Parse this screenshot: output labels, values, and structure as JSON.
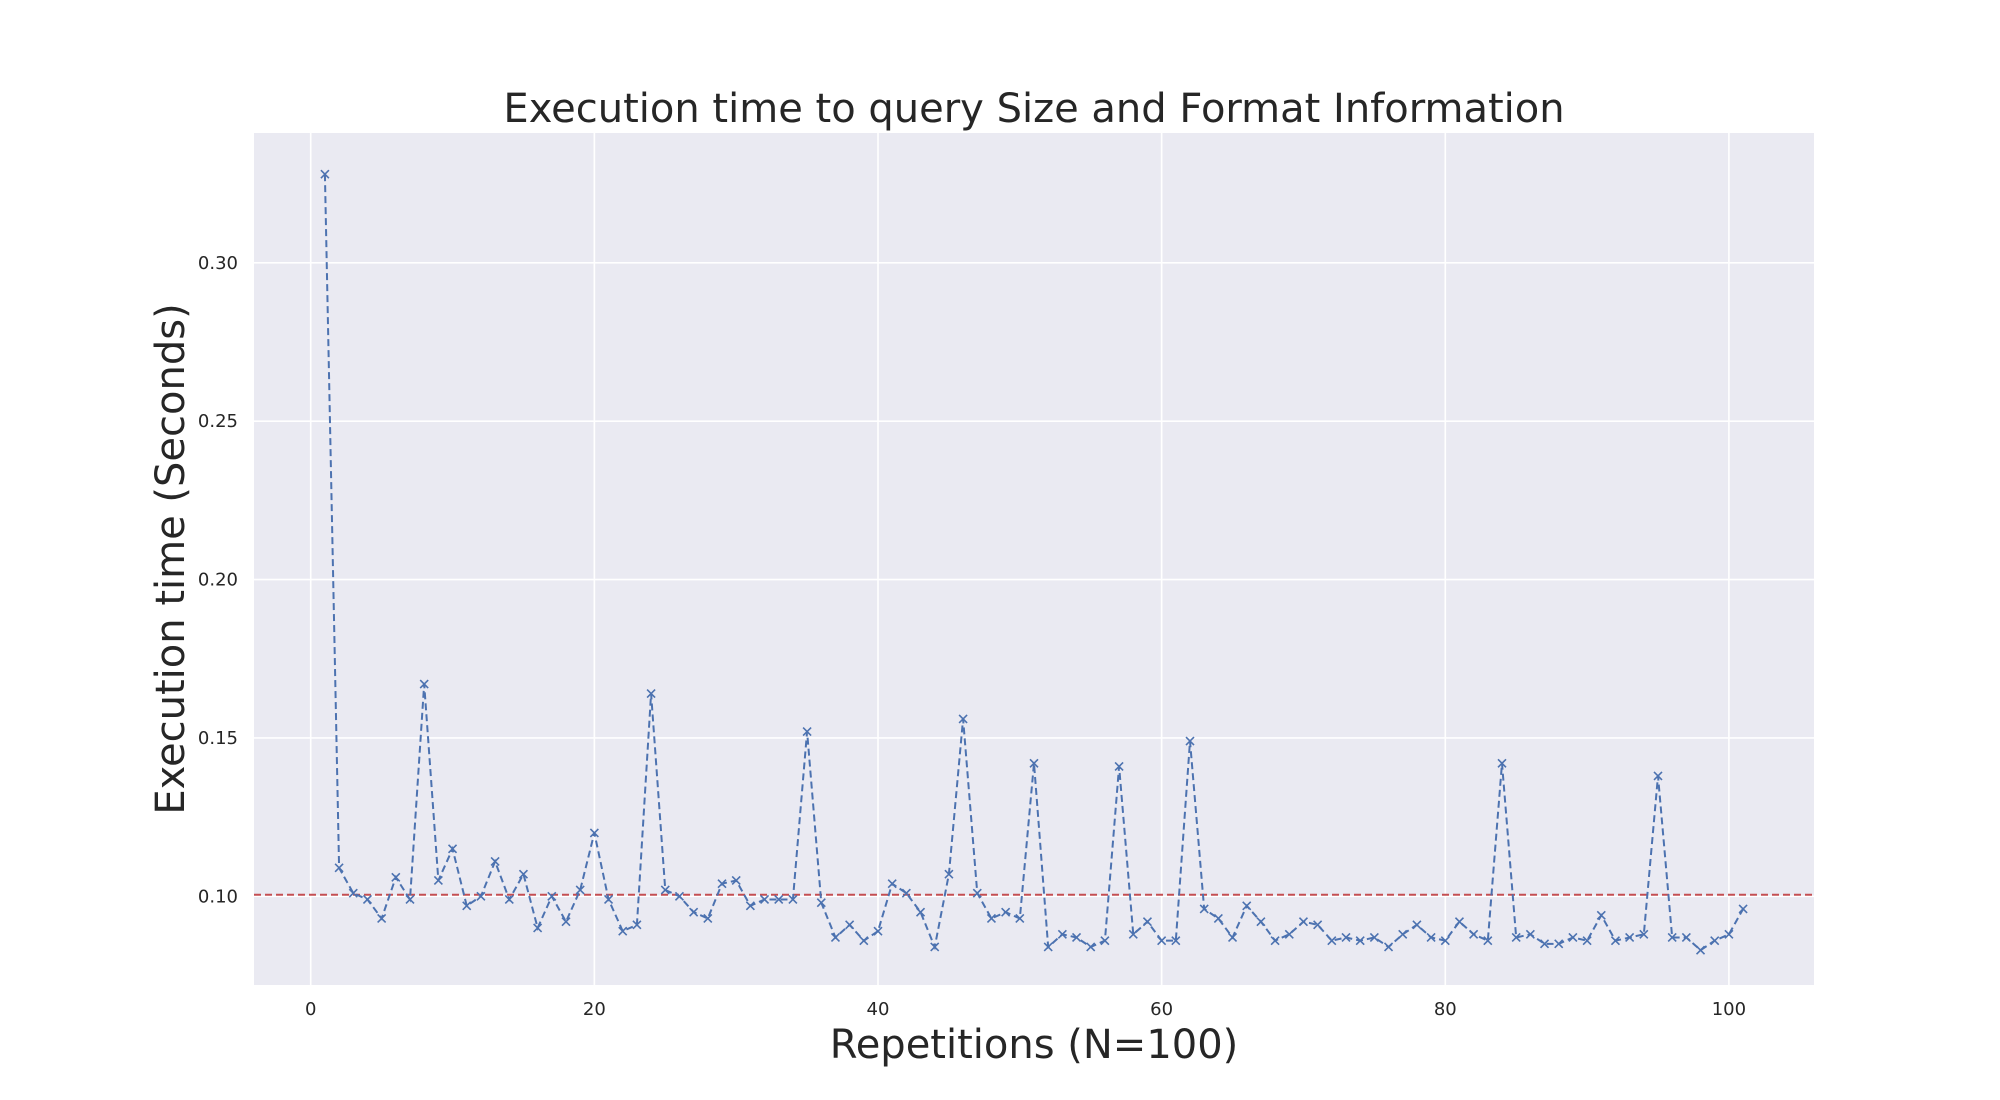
{
  "chart_data": {
    "type": "line",
    "title": "Execution time to query Size and Format Information",
    "xlabel": "Repetitions (N=100)",
    "ylabel": "Execution time (Seconds)",
    "xlim": [
      -4,
      106
    ],
    "ylim": [
      0.072,
      0.341
    ],
    "x_ticks": [
      0,
      20,
      40,
      60,
      80,
      100
    ],
    "x_tick_labels": [
      "0",
      "20",
      "40",
      "60",
      "80",
      "100"
    ],
    "y_ticks": [
      0.1,
      0.15,
      0.2,
      0.25,
      0.3
    ],
    "y_tick_labels": [
      "0.10",
      "0.15",
      "0.20",
      "0.25",
      "0.30"
    ],
    "grid": true,
    "reference_line": {
      "y": 0.1005,
      "color": "#c44e52",
      "style": "dashed"
    },
    "series": [
      {
        "color": "#4c72b0",
        "line_style": "dashed",
        "marker": "x",
        "x": [
          1,
          2,
          3,
          4,
          5,
          6,
          7,
          8,
          9,
          10,
          11,
          12,
          13,
          14,
          15,
          16,
          17,
          18,
          19,
          20,
          21,
          22,
          23,
          24,
          25,
          26,
          27,
          28,
          29,
          30,
          31,
          32,
          33,
          34,
          35,
          36,
          37,
          38,
          39,
          40,
          41,
          42,
          43,
          44,
          45,
          46,
          47,
          48,
          49,
          50,
          51,
          52,
          53,
          54,
          55,
          56,
          57,
          58,
          59,
          60,
          61,
          62,
          63,
          64,
          65,
          66,
          67,
          68,
          69,
          70,
          71,
          72,
          73,
          74,
          75,
          76,
          77,
          78,
          79,
          80,
          81,
          82,
          83,
          84,
          85,
          86,
          87,
          88,
          89,
          90,
          91,
          92,
          93,
          94,
          95,
          96,
          97,
          98,
          99,
          100,
          101
        ],
        "values": [
          0.328,
          0.109,
          0.101,
          0.099,
          0.093,
          0.106,
          0.099,
          0.167,
          0.105,
          0.115,
          0.097,
          0.1,
          0.111,
          0.099,
          0.107,
          0.09,
          0.1,
          0.092,
          0.102,
          0.12,
          0.099,
          0.089,
          0.091,
          0.164,
          0.102,
          0.1,
          0.095,
          0.093,
          0.104,
          0.105,
          0.097,
          0.099,
          0.099,
          0.099,
          0.152,
          0.098,
          0.087,
          0.091,
          0.086,
          0.089,
          0.104,
          0.101,
          0.095,
          0.084,
          0.107,
          0.156,
          0.101,
          0.093,
          0.095,
          0.093,
          0.142,
          0.084,
          0.088,
          0.087,
          0.084,
          0.086,
          0.141,
          0.088,
          0.092,
          0.086,
          0.086,
          0.149,
          0.096,
          0.093,
          0.087,
          0.097,
          0.092,
          0.086,
          0.088,
          0.092,
          0.091,
          0.086,
          0.087,
          0.086,
          0.087,
          0.084,
          0.088,
          0.091,
          0.087,
          0.086,
          0.092,
          0.088,
          0.086,
          0.142,
          0.087,
          0.088,
          0.085,
          0.085,
          0.087,
          0.086,
          0.094,
          0.086,
          0.087,
          0.088,
          0.138,
          0.087,
          0.087,
          0.083,
          0.086,
          0.088,
          0.096
        ]
      }
    ]
  }
}
